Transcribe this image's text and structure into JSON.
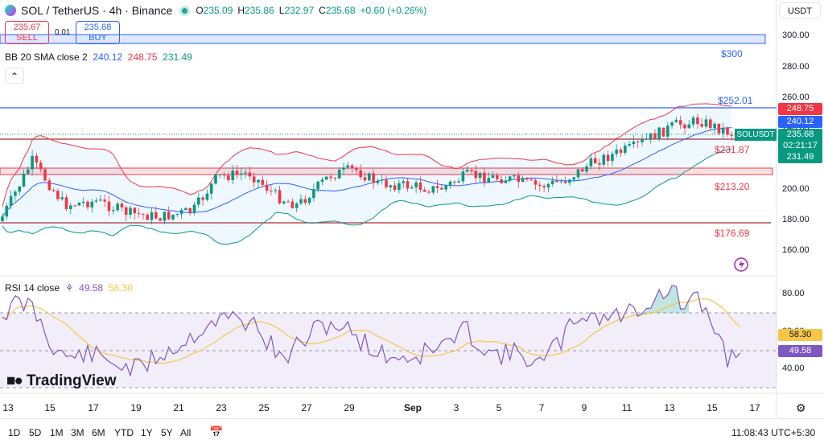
{
  "header": {
    "symbol": "SOL / TetherUS · 4h · Binance",
    "ohlc": [
      {
        "k": "O",
        "v": "235.09"
      },
      {
        "k": "H",
        "v": "235.86"
      },
      {
        "k": "L",
        "v": "232.97"
      },
      {
        "k": "C",
        "v": "235.68"
      },
      {
        "k": "",
        "v": "+0.60 (+0.26%)"
      }
    ]
  },
  "trade": {
    "sell_price": "235.67",
    "sell_label": "SELL",
    "spread": "0.01",
    "buy_price": "235.68",
    "buy_label": "BUY"
  },
  "indicators": {
    "bb_label": "BB 20 SMA close 2",
    "bb_basis": "240.12",
    "bb_upper": "248.75",
    "bb_lower": "231.49",
    "rsi_label": "RSI 14 close",
    "rsi_value": "49.58",
    "rsi_ma": "58.30"
  },
  "currency_button": "USDT",
  "price_labels": [
    "$300",
    "$252.01",
    "$231.87",
    "$213.20",
    "$176.69"
  ],
  "axis": {
    "y_ticks": [
      "300.00",
      "280.00",
      "260.00",
      "240.00",
      "220.00",
      "200.00",
      "180.00",
      "160.00"
    ],
    "rsi_ticks": [
      "80.00",
      "60.00",
      "40.00"
    ],
    "x_ticks": [
      "13",
      "15",
      "17",
      "19",
      "21",
      "23",
      "25",
      "27",
      "29",
      "Sep",
      "3",
      "5",
      "7",
      "9",
      "11",
      "13",
      "15",
      "17"
    ]
  },
  "tags": {
    "upper": "248.75",
    "basis": "240.12",
    "symbol": "SOLUSDT",
    "last": "235.68",
    "countdown": "02:21:17",
    "lower": "231.49",
    "rsi_ma": "58.30",
    "rsi": "49.58"
  },
  "logo": "TradingView",
  "bottom": {
    "ranges": [
      "1D",
      "5D",
      "1M",
      "3M",
      "6M",
      "YTD",
      "1Y",
      "5Y",
      "All"
    ],
    "clock": "11:08:43 UTC+5:30"
  },
  "colors": {
    "up": "#089981",
    "down": "#f23645",
    "blue": "#2962ff",
    "rsi": "#7e57c2",
    "rsi_ma": "#f7c548"
  }
}
